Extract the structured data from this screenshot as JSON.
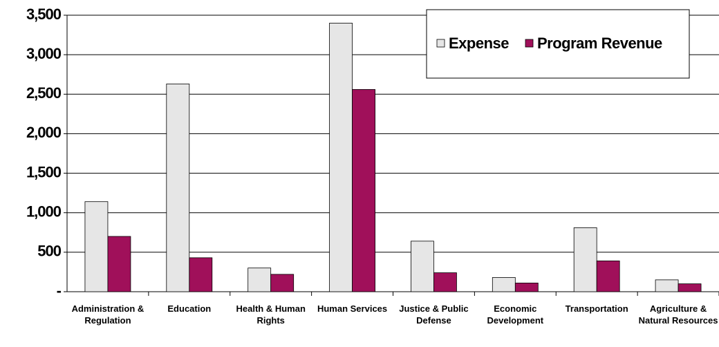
{
  "chart_data": {
    "type": "bar",
    "categories": [
      "Administration & Regulation",
      "Education",
      "Health & Human Rights",
      "Human Services",
      "Justice & Public Defense",
      "Economic Development",
      "Transportation",
      "Agriculture & Natural Resources"
    ],
    "series": [
      {
        "name": "Expense",
        "color": "#e6e6e6",
        "values": [
          1140,
          2630,
          300,
          3400,
          640,
          180,
          810,
          150
        ]
      },
      {
        "name": "Program Revenue",
        "color": "#a0105a",
        "values": [
          700,
          430,
          220,
          2560,
          240,
          110,
          390,
          100
        ]
      }
    ],
    "ylim": [
      0,
      3500
    ],
    "yticks": [
      {
        "value": 0,
        "label": "-"
      },
      500,
      {
        "value": 1000,
        "label": "1,000"
      },
      {
        "value": 1500,
        "label": "1,500"
      },
      {
        "value": 2000,
        "label": "2,000"
      },
      {
        "value": 2500,
        "label": "2,500"
      },
      {
        "value": 3000,
        "label": "3,000"
      },
      {
        "value": 3500,
        "label": "3,500"
      }
    ],
    "grid": true,
    "legend": "top-right"
  }
}
